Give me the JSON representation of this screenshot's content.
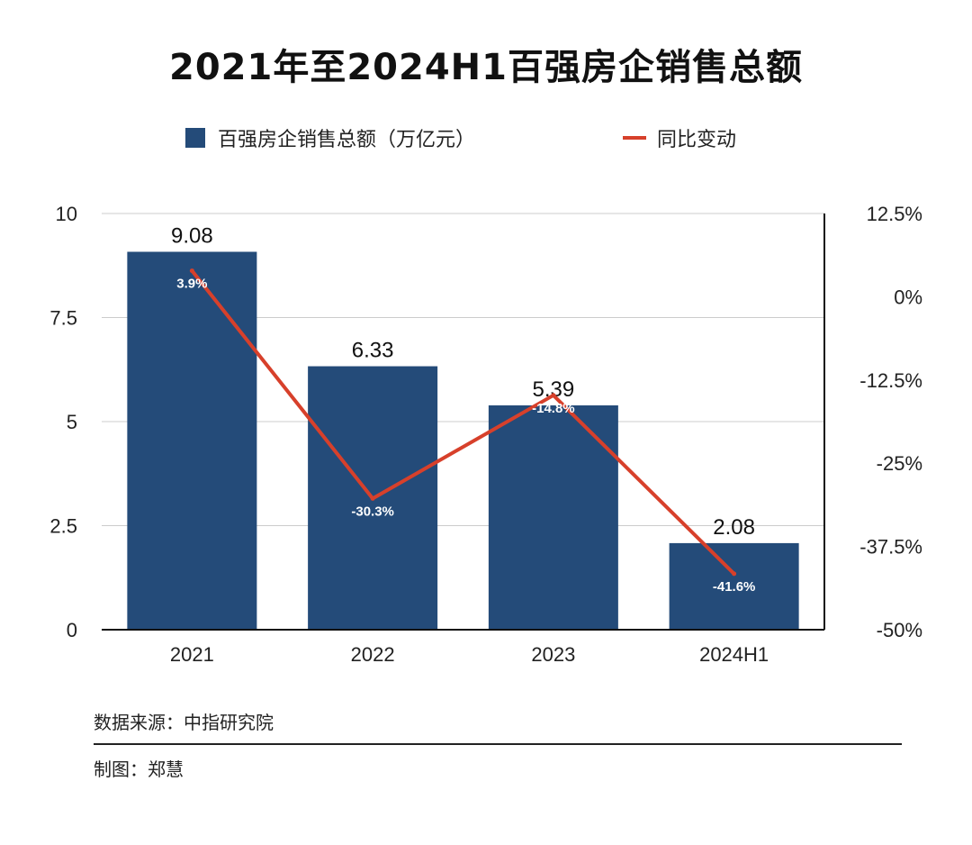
{
  "chart_title": "2021年至2024H1百强房企销售总额",
  "legend": {
    "bar_label": "百强房企销售总额（万亿元）",
    "line_label": "同比变动"
  },
  "colors": {
    "bar": "#244b79",
    "line": "#d7402b",
    "grid": "#cccccc",
    "axis": "#111111"
  },
  "chart_data": {
    "type": "bar",
    "title": "2021年至2024H1百强房企销售总额",
    "categories": [
      "2021",
      "2022",
      "2023",
      "2024H1"
    ],
    "series": [
      {
        "name": "百强房企销售总额（万亿元）",
        "type": "bar",
        "axis": "left",
        "values": [
          9.08,
          6.33,
          5.39,
          2.08
        ],
        "labels": [
          "9.08",
          "6.33",
          "5.39",
          "2.08"
        ]
      },
      {
        "name": "同比变动",
        "type": "line",
        "axis": "right",
        "values": [
          3.9,
          -30.3,
          -14.8,
          -41.6
        ],
        "labels": [
          "3.9%",
          "-30.3%",
          "-14.8%",
          "-41.6%"
        ]
      }
    ],
    "left_axis": {
      "ylim": [
        0,
        10
      ],
      "ticks": [
        0,
        2.5,
        5,
        7.5,
        10
      ],
      "tick_labels": [
        "0",
        "2.5",
        "5",
        "7.5",
        "10"
      ]
    },
    "right_axis": {
      "ylim": [
        -50,
        12.5
      ],
      "ticks": [
        -50,
        -37.5,
        -25,
        -12.5,
        0,
        12.5
      ],
      "tick_labels": [
        "-50%",
        "-37.5%",
        "-25%",
        "-12.5%",
        "0%",
        "12.5%"
      ]
    },
    "grid": true,
    "legend_position": "top"
  },
  "footer": {
    "source": "数据来源：中指研究院",
    "author": "制图：郑慧"
  }
}
